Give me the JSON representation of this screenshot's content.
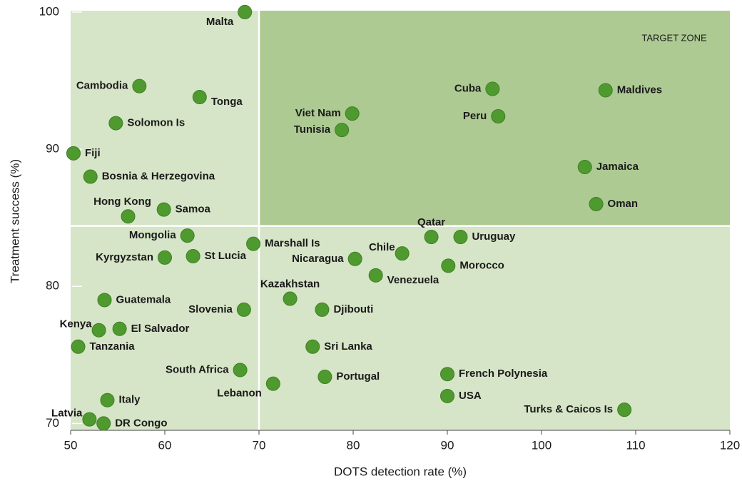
{
  "chart_data": {
    "type": "scatter",
    "x_label": "DOTS detection rate (%)",
    "y_label": "Treatment success (%)",
    "annotation": "TARGET ZONE",
    "quadrant_lines": {
      "x": 70,
      "y": 84.4
    },
    "xlim": [
      50,
      120
    ],
    "ylim": [
      69.5,
      100.1
    ],
    "xticks": [
      50,
      60,
      70,
      80,
      90,
      100,
      110,
      120
    ],
    "yticks": [
      70,
      80,
      90,
      100
    ],
    "color": "#4f9a2f",
    "zone_color": "#adca93",
    "background_color": "#d6e4c7",
    "labels": [
      "Malta",
      "Cambodia",
      "Tonga",
      "Solomon Is",
      "Fiji",
      "Bosnia & Herzegovina",
      "Hong Kong",
      "Samoa",
      "Mongolia",
      "Kyrgyzstan",
      "St Lucia",
      "Marshall Is",
      "Guatemala",
      "Slovenia",
      "Kenya",
      "El Salvador",
      "Tanzania",
      "South Africa",
      "Lebanon",
      "Latvia",
      "Italy",
      "DR Congo",
      "Viet Nam",
      "Tunisia",
      "Cuba",
      "Peru",
      "Maldives",
      "Jamaica",
      "Oman",
      "Qatar",
      "Uruguay",
      "Chile",
      "Nicaragua",
      "Morocco",
      "Venezuela",
      "Kazakhstan",
      "Djibouti",
      "Sri Lanka",
      "Portugal",
      "French Polynesia",
      "USA",
      "Turks & Caicos Is"
    ],
    "x": [
      68.5,
      57.3,
      63.7,
      54.8,
      50.3,
      52.1,
      56.1,
      59.9,
      62.4,
      60.0,
      63.0,
      69.4,
      53.6,
      68.4,
      53.0,
      55.2,
      50.8,
      68.0,
      71.5,
      52.0,
      53.9,
      53.5,
      79.9,
      78.8,
      94.8,
      95.4,
      106.8,
      104.6,
      105.8,
      88.3,
      91.4,
      85.2,
      80.2,
      90.1,
      82.4,
      73.3,
      76.7,
      75.7,
      77.0,
      90.0,
      90.0,
      108.8
    ],
    "values": [
      100.0,
      94.6,
      93.8,
      91.9,
      89.7,
      88.0,
      85.1,
      85.6,
      83.7,
      82.1,
      82.2,
      83.1,
      79.0,
      78.3,
      76.8,
      76.9,
      75.6,
      73.9,
      72.9,
      70.3,
      71.7,
      70.0,
      92.6,
      91.4,
      94.4,
      92.4,
      94.3,
      88.7,
      86.0,
      83.6,
      83.6,
      82.4,
      82.0,
      81.5,
      80.8,
      79.1,
      78.3,
      75.6,
      73.4,
      73.6,
      72.0,
      71.0
    ]
  }
}
